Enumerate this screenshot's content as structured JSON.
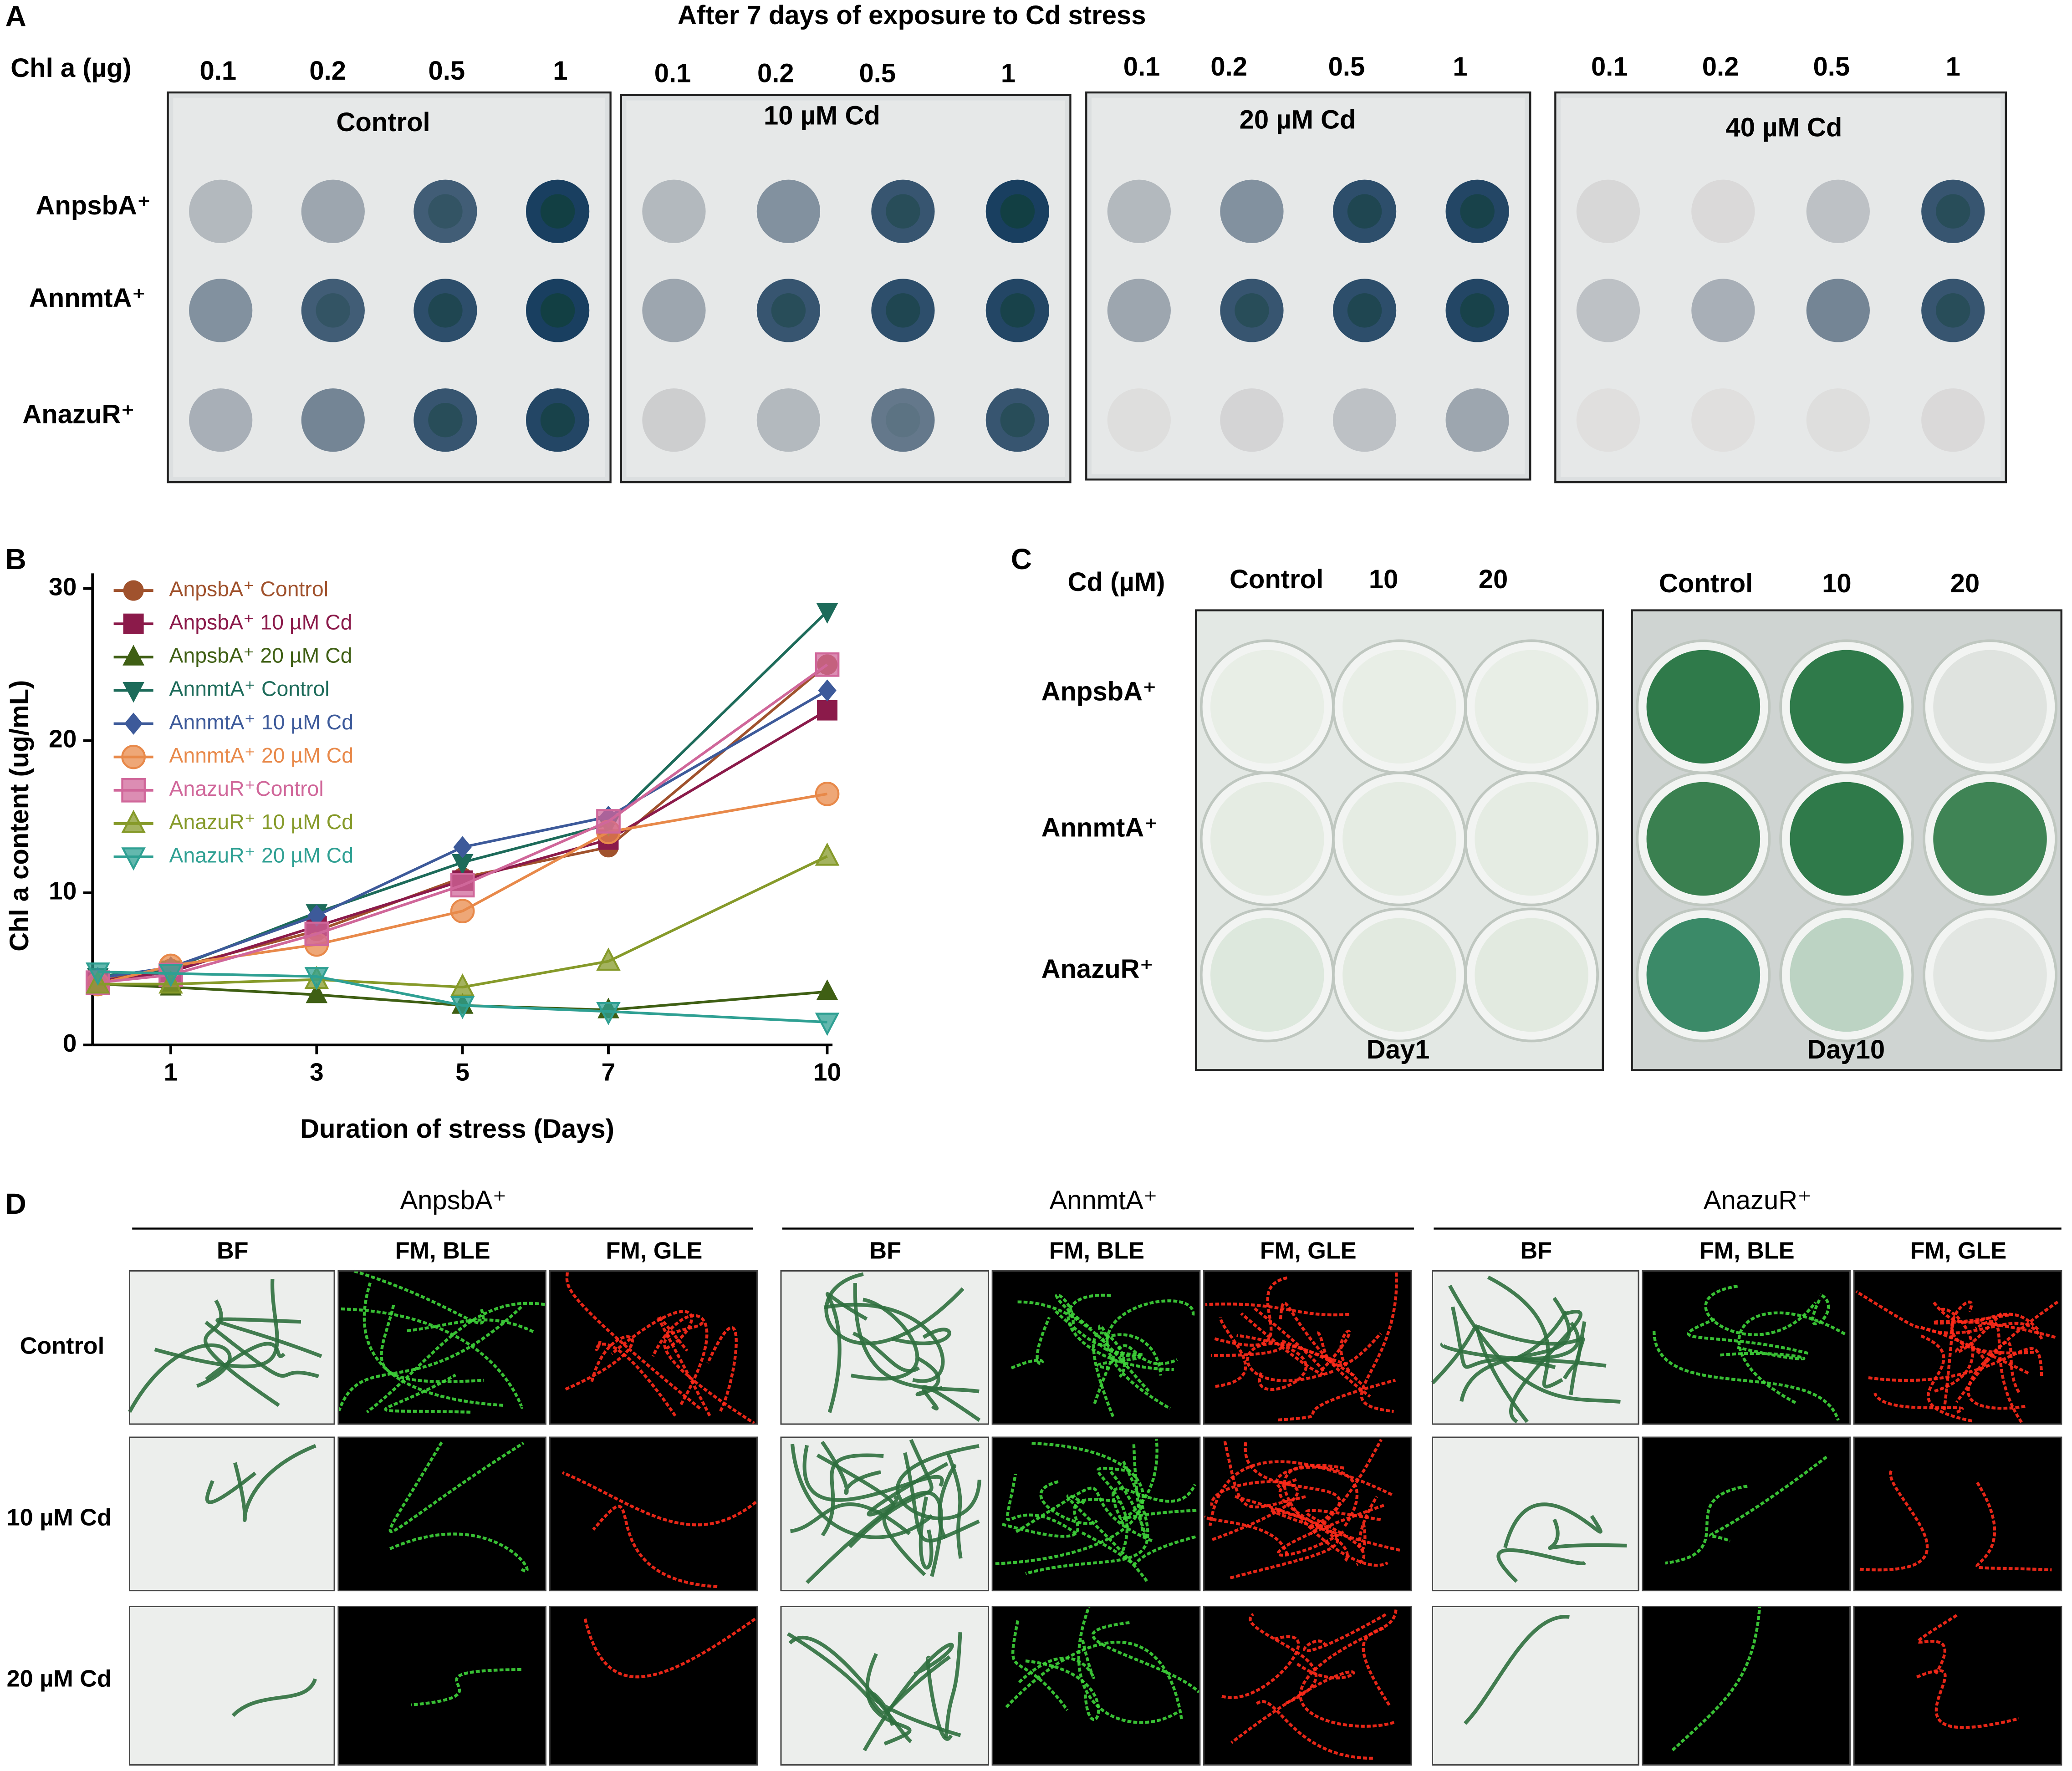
{
  "panel_labels": [
    "A",
    "B",
    "C",
    "D"
  ],
  "panel_a": {
    "title": "After 7 days of    exposure to Cd stress",
    "chl_label": "Chl a (µg)",
    "doses": [
      "0.1",
      "0.2",
      "0.5",
      "1"
    ],
    "plates": [
      "Control",
      "10 µM Cd",
      "20 µM Cd",
      "40 µM Cd"
    ],
    "strains": [
      "AnpsbA⁺",
      "AnnmtA⁺",
      "AnazuR⁺"
    ]
  },
  "chart_data": {
    "type": "line",
    "y_label": "Chl a content (ug/mL)",
    "x_label": "Duration of stress (Days)",
    "x": [
      0,
      1,
      3,
      5,
      7,
      10
    ],
    "xlim": [
      0,
      10
    ],
    "xticks": [
      1,
      3,
      5,
      7,
      10
    ],
    "ylim": [
      0,
      31
    ],
    "yticks": [
      0,
      10,
      20,
      30
    ],
    "legend": "top-left",
    "series": [
      {
        "name": "AnpsbA⁺ Control",
        "color": "#a0522d",
        "marker": "circle",
        "values": [
          4.2,
          5.0,
          7.5,
          11.0,
          13.0,
          25.0
        ]
      },
      {
        "name": "AnpsbA⁺ 10 µM Cd",
        "color": "#8b1a4a",
        "marker": "square",
        "values": [
          4.2,
          4.8,
          7.8,
          10.8,
          13.5,
          22.0
        ]
      },
      {
        "name": "AnpsbA⁺ 20 µM Cd",
        "color": "#3f5f14",
        "marker": "triangle",
        "values": [
          4.0,
          3.8,
          3.3,
          2.6,
          2.3,
          3.5
        ]
      },
      {
        "name": "AnnmtA⁺ Control",
        "color": "#1d6b5a",
        "marker": "triangle-down",
        "values": [
          4.5,
          5.0,
          8.7,
          12.0,
          14.5,
          28.5
        ]
      },
      {
        "name": "AnnmtA⁺ 10 µM Cd",
        "color": "#3d5a9a",
        "marker": "diamond",
        "values": [
          4.4,
          5.1,
          8.5,
          13.0,
          15.0,
          23.3
        ]
      },
      {
        "name": "AnnmtA⁺ 20 µM Cd",
        "color": "#e8894a",
        "marker": "circle",
        "values": [
          4.0,
          5.2,
          6.6,
          8.8,
          14.0,
          16.5
        ]
      },
      {
        "name": "AnazuR⁺Control",
        "color": "#d0679a",
        "marker": "square",
        "values": [
          4.1,
          4.6,
          7.3,
          10.5,
          14.7,
          25.0
        ]
      },
      {
        "name": "AnazuR⁺ 10 µM Cd",
        "color": "#869a2a",
        "marker": "triangle",
        "values": [
          4.0,
          4.0,
          4.3,
          3.8,
          5.5,
          12.4
        ]
      },
      {
        "name": "AnazuR⁺ 20 µM Cd",
        "color": "#2fa093",
        "marker": "triangle-down",
        "values": [
          4.8,
          4.7,
          4.5,
          2.6,
          2.2,
          1.5
        ]
      }
    ]
  },
  "panel_c": {
    "cd_label": "Cd (µM)",
    "columns": [
      "Control",
      "10",
      "20"
    ],
    "strains": [
      "AnpsbA⁺",
      "AnnmtA⁺",
      "AnazuR⁺"
    ],
    "days": [
      "Day1",
      "Day10"
    ]
  },
  "panel_d": {
    "strains": [
      "AnpsbA⁺",
      "AnnmtA⁺",
      "AnazuR⁺"
    ],
    "channels": [
      "BF",
      "FM, BLE",
      "FM, GLE"
    ],
    "treatments": [
      "Control",
      "10 µM Cd",
      "20 µM Cd"
    ]
  }
}
